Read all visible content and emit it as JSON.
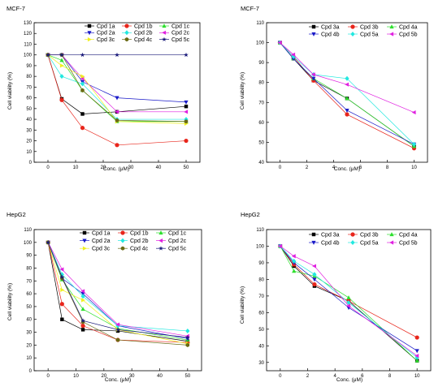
{
  "chart_data": [
    {
      "type": "line",
      "title": "MCF-7",
      "xlabel": "Conc. (μM)",
      "ylabel": "Cell viability (%)",
      "xlim": [
        -5,
        55
      ],
      "ylim": [
        0,
        130
      ],
      "xticks": [
        0,
        10,
        20,
        30,
        40,
        50
      ],
      "yticks": [
        0,
        10,
        20,
        30,
        40,
        50,
        60,
        70,
        80,
        90,
        100,
        110,
        120,
        130
      ],
      "x": [
        0,
        5,
        12.5,
        25,
        50
      ],
      "series": [
        {
          "name": "Cpd 1a",
          "color": "#000000",
          "marker": "square",
          "values": [
            100,
            59,
            45,
            47,
            52
          ]
        },
        {
          "name": "Cpd 1b",
          "color": "#e8251b",
          "marker": "circle",
          "values": [
            100,
            58,
            32,
            16,
            20
          ]
        },
        {
          "name": "Cpd 1c",
          "color": "#2ee02e",
          "marker": "triangle",
          "values": [
            100,
            95,
            67,
            38,
            38
          ]
        },
        {
          "name": "Cpd 2a",
          "color": "#1a1ac8",
          "marker": "tri-down",
          "values": [
            100,
            100,
            75,
            60,
            56
          ]
        },
        {
          "name": "Cpd 2b",
          "color": "#22e8e0",
          "marker": "diamond",
          "values": [
            100,
            80,
            73,
            40,
            40
          ]
        },
        {
          "name": "Cpd 2c",
          "color": "#e020e0",
          "marker": "tri-left",
          "values": [
            100,
            100,
            78,
            47,
            47
          ]
        },
        {
          "name": "Cpd 3c",
          "color": "#f0f020",
          "marker": "tri-right",
          "values": [
            100,
            90,
            80,
            38,
            36
          ]
        },
        {
          "name": "Cpd 4c",
          "color": "#6a6a14",
          "marker": "hexagon",
          "values": [
            100,
            100,
            67,
            39,
            38
          ]
        },
        {
          "name": "Cpd 5c",
          "color": "#1a1a7a",
          "marker": "star",
          "values": [
            100,
            100,
            100,
            100,
            100
          ]
        }
      ]
    },
    {
      "type": "line",
      "title": "MCF-7",
      "xlabel": "Conc. (μM)",
      "ylabel": "Cell viability (%)",
      "xlim": [
        -1,
        11
      ],
      "ylim": [
        40,
        110
      ],
      "xticks": [
        0,
        2,
        4,
        6,
        8,
        10
      ],
      "yticks": [
        40,
        50,
        60,
        70,
        80,
        90,
        100,
        110
      ],
      "x": [
        0,
        1,
        2.5,
        5,
        10
      ],
      "series": [
        {
          "name": "Cpd 3a",
          "color": "#000000",
          "marker": "square",
          "values": [
            100,
            92,
            81,
            72,
            48
          ]
        },
        {
          "name": "Cpd 3b",
          "color": "#e8251b",
          "marker": "circle",
          "values": [
            100,
            93,
            81,
            64,
            47
          ]
        },
        {
          "name": "Cpd 4a",
          "color": "#2ee02e",
          "marker": "triangle",
          "values": [
            100,
            92,
            82,
            72,
            48
          ]
        },
        {
          "name": "Cpd 4b",
          "color": "#1a1ac8",
          "marker": "tri-down",
          "values": [
            100,
            92,
            82,
            66,
            49
          ]
        },
        {
          "name": "Cpd 5a",
          "color": "#22e8e0",
          "marker": "diamond",
          "values": [
            100,
            93,
            84,
            82,
            49
          ]
        },
        {
          "name": "Cpd 5b",
          "color": "#e020e0",
          "marker": "tri-left",
          "values": [
            100,
            94,
            84,
            79,
            65
          ]
        }
      ]
    },
    {
      "type": "line",
      "title": "HepG2",
      "xlabel": "Conc. (μM)",
      "ylabel": "Cell viability (%)",
      "xlim": [
        -5,
        55
      ],
      "ylim": [
        0,
        110
      ],
      "xticks": [
        0,
        10,
        20,
        30,
        40,
        50
      ],
      "yticks": [
        0,
        10,
        20,
        30,
        40,
        50,
        60,
        70,
        80,
        90,
        100,
        110
      ],
      "x": [
        0,
        5,
        12.5,
        25,
        50
      ],
      "series": [
        {
          "name": "Cpd 1a",
          "color": "#000000",
          "marker": "square",
          "values": [
            100,
            40,
            32,
            31,
            23
          ]
        },
        {
          "name": "Cpd 1b",
          "color": "#e8251b",
          "marker": "circle",
          "values": [
            100,
            52,
            35,
            24,
            22
          ]
        },
        {
          "name": "Cpd 1c",
          "color": "#2ee02e",
          "marker": "triangle",
          "values": [
            100,
            71,
            48,
            33,
            24
          ]
        },
        {
          "name": "Cpd 2a",
          "color": "#1a1ac8",
          "marker": "tri-down",
          "values": [
            100,
            72,
            60,
            35,
            25
          ]
        },
        {
          "name": "Cpd 2b",
          "color": "#22e8e0",
          "marker": "diamond",
          "values": [
            100,
            75,
            58,
            35,
            31
          ]
        },
        {
          "name": "Cpd 2c",
          "color": "#e020e0",
          "marker": "tri-left",
          "values": [
            100,
            79,
            62,
            36,
            27
          ]
        },
        {
          "name": "Cpd 3c",
          "color": "#f0f020",
          "marker": "tri-right",
          "values": [
            100,
            63,
            55,
            32,
            21
          ]
        },
        {
          "name": "Cpd 4c",
          "color": "#6a6a14",
          "marker": "hexagon",
          "values": [
            100,
            72,
            38,
            24,
            20
          ]
        },
        {
          "name": "Cpd 5c",
          "color": "#1a1a7a",
          "marker": "star",
          "values": [
            100,
            73,
            39,
            32,
            26
          ]
        }
      ]
    },
    {
      "type": "line",
      "title": "HepG2",
      "xlabel": "Conc. (μM)",
      "ylabel": "Cell viability (%)",
      "xlim": [
        -1,
        11
      ],
      "ylim": [
        25,
        110
      ],
      "xticks": [
        0,
        2,
        4,
        6,
        8,
        10
      ],
      "yticks": [
        30,
        40,
        50,
        60,
        70,
        80,
        90,
        100,
        110
      ],
      "x": [
        0,
        1,
        2.5,
        5,
        10
      ],
      "series": [
        {
          "name": "Cpd 3a",
          "color": "#000000",
          "marker": "square",
          "values": [
            100,
            88,
            76,
            67,
            31
          ]
        },
        {
          "name": "Cpd 3b",
          "color": "#e8251b",
          "marker": "circle",
          "values": [
            100,
            89,
            77,
            67,
            45
          ]
        },
        {
          "name": "Cpd 4a",
          "color": "#2ee02e",
          "marker": "triangle",
          "values": [
            100,
            85,
            82,
            69,
            31
          ]
        },
        {
          "name": "Cpd 4b",
          "color": "#1a1ac8",
          "marker": "tri-down",
          "values": [
            100,
            90,
            80,
            63,
            37
          ]
        },
        {
          "name": "Cpd 5a",
          "color": "#22e8e0",
          "marker": "diamond",
          "values": [
            100,
            91,
            83,
            66,
            33
          ]
        },
        {
          "name": "Cpd 5b",
          "color": "#e020e0",
          "marker": "tri-left",
          "values": [
            100,
            94,
            88,
            64,
            34
          ]
        }
      ]
    }
  ]
}
